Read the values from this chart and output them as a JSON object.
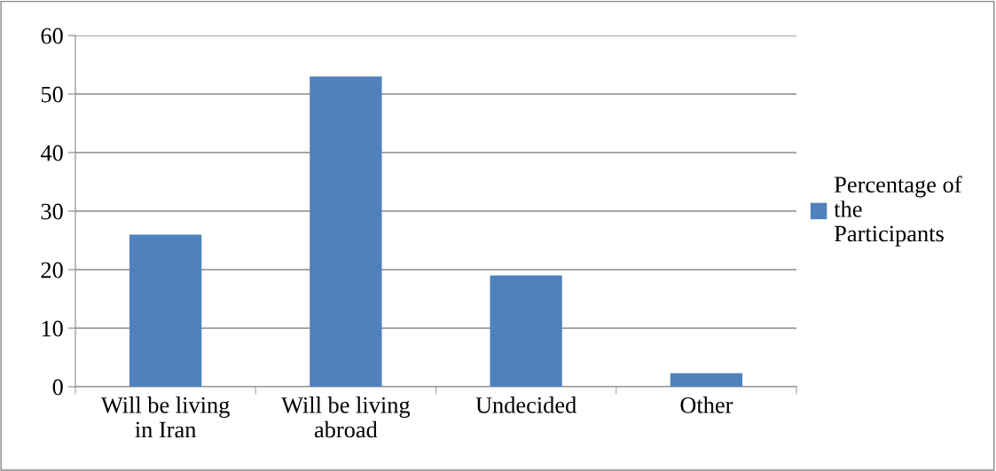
{
  "chart_data": {
    "type": "bar",
    "categories": [
      "Will be living in Iran",
      "Will be living abroad",
      "Undecided",
      "Other"
    ],
    "series": [
      {
        "name": "Percentage of the Participants",
        "color": "#4f81bd",
        "values": [
          26,
          53,
          19,
          2.3
        ]
      }
    ],
    "ylim": [
      0,
      60
    ],
    "yticks": [
      0,
      10,
      20,
      30,
      40,
      50,
      60
    ],
    "grid": "y",
    "legend": "right"
  }
}
